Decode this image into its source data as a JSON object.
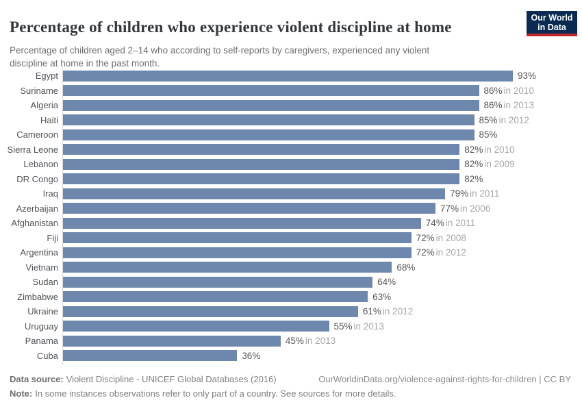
{
  "header": {
    "title": "Percentage of children who experience violent discipline at home",
    "subtitle": "Percentage of children aged 2–14 who according to self-reports by caregivers, experienced any violent discipline at home in the past month.",
    "logo": {
      "line1": "Our World",
      "line2": "in Data"
    }
  },
  "chart_data": {
    "type": "bar",
    "orientation": "horizontal",
    "title": "Percentage of children who experience violent discipline at home",
    "unit": "%",
    "xlim": [
      0,
      93
    ],
    "grid": false,
    "legend": "none",
    "bar_color": "#6e87ad",
    "categories": [
      "Egypt",
      "Suriname",
      "Algeria",
      "Haiti",
      "Cameroon",
      "Sierra Leone",
      "Lebanon",
      "DR Congo",
      "Iraq",
      "Azerbaijan",
      "Afghanistan",
      "Fiji",
      "Argentina",
      "Vietnam",
      "Sudan",
      "Zimbabwe",
      "Ukraine",
      "Uruguay",
      "Panama",
      "Cuba"
    ],
    "values": [
      93,
      86,
      86,
      85,
      85,
      82,
      82,
      82,
      79,
      77,
      74,
      72,
      72,
      68,
      64,
      63,
      61,
      55,
      45,
      36
    ],
    "rows": [
      {
        "country": "Egypt",
        "value": 93,
        "value_label": "93%",
        "year_label": ""
      },
      {
        "country": "Suriname",
        "value": 86,
        "value_label": "86%",
        "year_label": "in 2010"
      },
      {
        "country": "Algeria",
        "value": 86,
        "value_label": "86%",
        "year_label": "in 2013"
      },
      {
        "country": "Haiti",
        "value": 85,
        "value_label": "85%",
        "year_label": "in 2012"
      },
      {
        "country": "Cameroon",
        "value": 85,
        "value_label": "85%",
        "year_label": ""
      },
      {
        "country": "Sierra Leone",
        "value": 82,
        "value_label": "82%",
        "year_label": "in 2010"
      },
      {
        "country": "Lebanon",
        "value": 82,
        "value_label": "82%",
        "year_label": "in 2009"
      },
      {
        "country": "DR Congo",
        "value": 82,
        "value_label": "82%",
        "year_label": ""
      },
      {
        "country": "Iraq",
        "value": 79,
        "value_label": "79%",
        "year_label": "in 2011"
      },
      {
        "country": "Azerbaijan",
        "value": 77,
        "value_label": "77%",
        "year_label": "in 2006"
      },
      {
        "country": "Afghanistan",
        "value": 74,
        "value_label": "74%",
        "year_label": "in 2011"
      },
      {
        "country": "Fiji",
        "value": 72,
        "value_label": "72%",
        "year_label": "in 2008"
      },
      {
        "country": "Argentina",
        "value": 72,
        "value_label": "72%",
        "year_label": "in 2012"
      },
      {
        "country": "Vietnam",
        "value": 68,
        "value_label": "68%",
        "year_label": ""
      },
      {
        "country": "Sudan",
        "value": 64,
        "value_label": "64%",
        "year_label": ""
      },
      {
        "country": "Zimbabwe",
        "value": 63,
        "value_label": "63%",
        "year_label": ""
      },
      {
        "country": "Ukraine",
        "value": 61,
        "value_label": "61%",
        "year_label": "in 2012"
      },
      {
        "country": "Uruguay",
        "value": 55,
        "value_label": "55%",
        "year_label": "in 2013"
      },
      {
        "country": "Panama",
        "value": 45,
        "value_label": "45%",
        "year_label": "in 2013"
      },
      {
        "country": "Cuba",
        "value": 36,
        "value_label": "36%",
        "year_label": ""
      }
    ]
  },
  "footer": {
    "datasource_label": "Data source:",
    "datasource_text": "Violent Discipline - UNICEF Global Databases (2016)",
    "link_text": "OurWorldinData.org/violence-against-rights-for-children | CC BY",
    "note_label": "Note:",
    "note_text": "In some instances observations refer to only part of a country. See sources for more details."
  },
  "colors": {
    "bar": "#6e87ad",
    "axis_line": "#d9d9d9",
    "title": "#33373d",
    "subtitle": "#6e6e6e",
    "country_label": "#4f5357",
    "value_label": "#565656",
    "year_label": "#a5a5a5",
    "footer_text": "#7d7d7d",
    "logo_bg": "#0a2a52",
    "logo_accent": "#c0232c"
  }
}
